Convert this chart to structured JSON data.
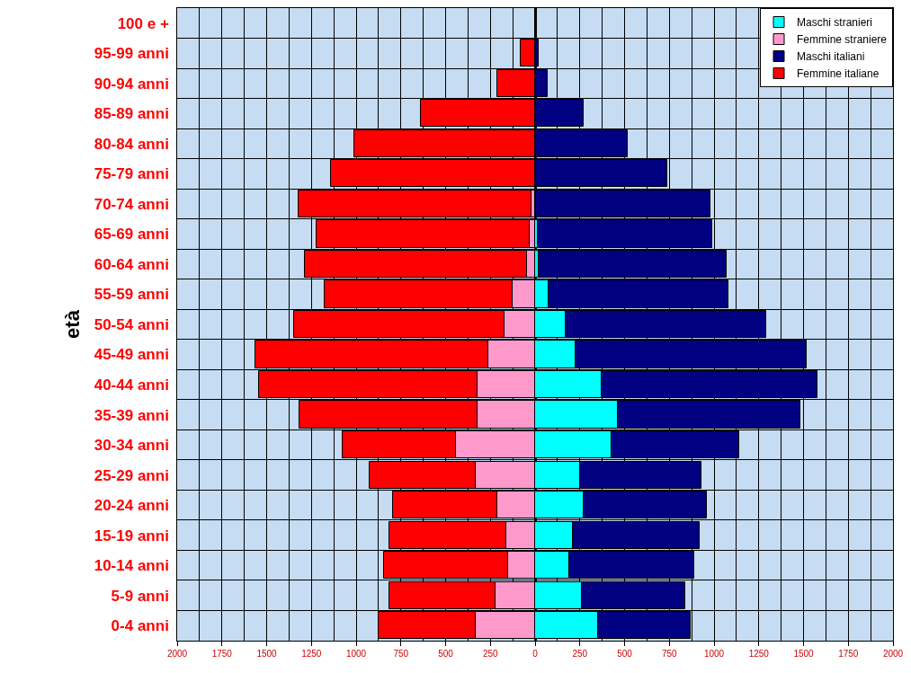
{
  "chart_data": {
    "type": "bar",
    "orientation": "horizontal",
    "stacked": true,
    "ylabel": "età",
    "categories": [
      "100 e +",
      "95-99 anni",
      "90-94 anni",
      "85-89 anni",
      "80-84 anni",
      "75-79 anni",
      "70-74 anni",
      "65-69 anni",
      "60-64 anni",
      "55-59 anni",
      "50-54 anni",
      "45-49 anni",
      "40-44 anni",
      "35-39 anni",
      "30-34 anni",
      "25-29 anni",
      "20-24 anni",
      "15-19 anni",
      "10-14 anni",
      "5-9 anni",
      "0-4 anni"
    ],
    "series": [
      {
        "name": "Maschi stranieri",
        "color": "#00ffff",
        "values": [
          null,
          null,
          null,
          null,
          null,
          null,
          5,
          15,
          20,
          75,
          170,
          225,
          370,
          460,
          425,
          250,
          270,
          210,
          190,
          260,
          350
        ]
      },
      {
        "name": "Femmine straniere",
        "color": "#ff99cc",
        "values": [
          null,
          null,
          null,
          null,
          null,
          null,
          -20,
          -30,
          -45,
          -125,
          -170,
          -260,
          -320,
          -320,
          -440,
          -330,
          -210,
          -160,
          -150,
          -220,
          -330
        ]
      },
      {
        "name": "Maschi italiani",
        "color": "#000080",
        "values": [
          null,
          20,
          70,
          270,
          520,
          740,
          975,
          975,
          1050,
          1005,
          1120,
          1295,
          1210,
          1020,
          715,
          680,
          690,
          710,
          700,
          580,
          520
        ]
      },
      {
        "name": "Femmine italiane",
        "color": "#ff0000",
        "values": [
          null,
          -80,
          -210,
          -640,
          -1010,
          -1140,
          -1300,
          -1190,
          -1240,
          -1050,
          -1175,
          -1305,
          -1225,
          -995,
          -635,
          -595,
          -585,
          -655,
          -695,
          -595,
          -545
        ]
      }
    ],
    "xlim": [
      -2000,
      2000
    ],
    "xticks": [
      {
        "value": -2000,
        "label": "2000"
      },
      {
        "value": -1750,
        "label": "1750"
      },
      {
        "value": -1500,
        "label": "1500"
      },
      {
        "value": -1250,
        "label": "1250"
      },
      {
        "value": -1000,
        "label": "1000"
      },
      {
        "value": -750,
        "label": "750"
      },
      {
        "value": -500,
        "label": "500"
      },
      {
        "value": -250,
        "label": "250"
      },
      0,
      250,
      500,
      750,
      1000,
      1250,
      1500,
      1750,
      2000
    ],
    "grid": true,
    "legend": "top right"
  }
}
